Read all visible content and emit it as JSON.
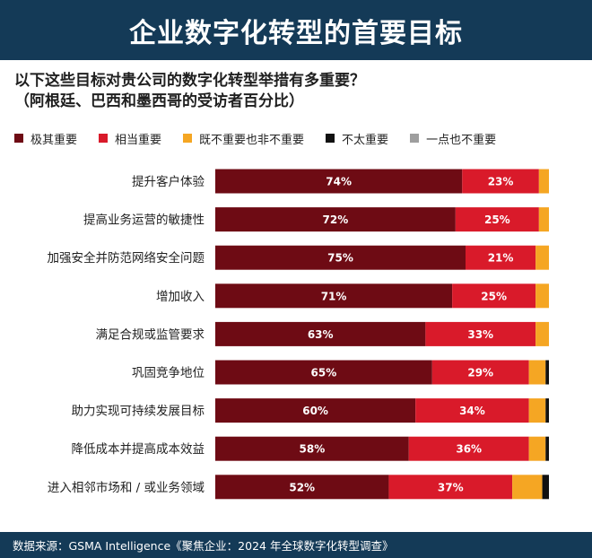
{
  "header": {
    "title": "企业数字化转型的首要目标"
  },
  "subtitle": {
    "line1": "以下这些目标对贵公司的数字化转型举措有多重要？",
    "line2": "（阿根廷、巴西和墨西哥的受访者百分比）"
  },
  "footer": {
    "source": "数据来源：GSMA Intelligence《聚焦企业：2024 年全球数字化转型调查》"
  },
  "colors": {
    "header_bg": "#143a57",
    "very_important": "#6e0b14",
    "quite_important": "#d91a2a",
    "neutral": "#f5a623",
    "not_very": "#111111",
    "not_at_all": "#9e9e9e"
  },
  "chart_data": {
    "type": "bar",
    "orientation": "horizontal",
    "stacked": true,
    "xlim": [
      0,
      100
    ],
    "categories": [
      "提升客户体验",
      "提高业务运营的敏捷性",
      "加强安全并防范网络安全问题",
      "增加收入",
      "满足合规或监管要求",
      "巩固竞争地位",
      "助力实现可持续发展目标",
      "降低成本并提高成本效益",
      "进入相邻市场和 / 或业务领域"
    ],
    "series": [
      {
        "name": "极其重要",
        "color": "#6e0b14",
        "values": [
          74,
          72,
          75,
          71,
          63,
          65,
          60,
          58,
          52
        ],
        "labels": [
          "74%",
          "72%",
          "75%",
          "71%",
          "63%",
          "65%",
          "60%",
          "58%",
          "52%"
        ]
      },
      {
        "name": "相当重要",
        "color": "#d91a2a",
        "values": [
          23,
          25,
          21,
          25,
          33,
          29,
          34,
          36,
          37
        ],
        "labels": [
          "23%",
          "25%",
          "21%",
          "25%",
          "33%",
          "29%",
          "34%",
          "36%",
          "37%"
        ]
      },
      {
        "name": "既不重要也非不重要",
        "color": "#f5a623",
        "values": [
          3,
          3,
          4,
          4,
          4,
          5,
          5,
          5,
          9
        ],
        "labels": []
      },
      {
        "name": "不太重要",
        "color": "#111111",
        "values": [
          0,
          0,
          0,
          0,
          0,
          1,
          1,
          1,
          2
        ],
        "labels": []
      },
      {
        "name": "一点也不重要",
        "color": "#9e9e9e",
        "values": [
          0,
          0,
          0,
          0,
          0,
          0,
          0,
          0,
          0
        ],
        "labels": []
      }
    ]
  }
}
